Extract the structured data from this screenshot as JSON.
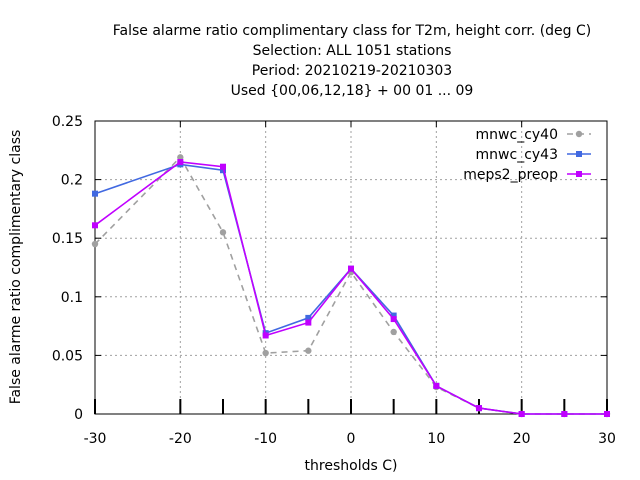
{
  "chart_data": {
    "type": "line",
    "title_lines": [
      "False alarme ratio complimentary class  for T2m, height corr. (deg C)",
      "Selection: ALL    1051 stations",
      "Period: 20210219-20210303",
      "Used {00,06,12,18} + 00 01 ... 09"
    ],
    "xlabel": "thresholds C)",
    "ylabel": "False alarme ratio complimentary class",
    "xlim": [
      -30,
      30
    ],
    "ylim": [
      0,
      0.25
    ],
    "xticks": [
      -30,
      -20,
      -10,
      0,
      10,
      20,
      30
    ],
    "xtick_labels": [
      "-30",
      "-20",
      "-10",
      "0",
      "10",
      "20",
      "30"
    ],
    "yticks": [
      0,
      0.05,
      0.1,
      0.15,
      0.2,
      0.25
    ],
    "ytick_labels": [
      "0",
      "0.05",
      "0.1",
      "0.15",
      "0.2",
      "0.25"
    ],
    "grid": true,
    "legend_position": "top-right",
    "x": [
      -30,
      -20,
      -15,
      -10,
      -5,
      0,
      5,
      10,
      15,
      20,
      25,
      30
    ],
    "series": [
      {
        "name": "mnwc_cy40",
        "color": "#a0a0a0",
        "dash": "dashed",
        "marker": "circle",
        "values": [
          0.145,
          0.219,
          0.155,
          0.052,
          0.054,
          0.121,
          0.07,
          0.023,
          0.005,
          0.0,
          0.0,
          0.0
        ]
      },
      {
        "name": "mnwc_cy43",
        "color": "#4169e1",
        "dash": "solid",
        "marker": "square",
        "values": [
          0.188,
          0.213,
          0.208,
          0.069,
          0.082,
          0.124,
          0.084,
          0.024,
          0.005,
          0.0,
          0.0,
          0.0
        ]
      },
      {
        "name": "meps2_preop",
        "color": "#c000ff",
        "dash": "solid",
        "marker": "square",
        "values": [
          0.161,
          0.215,
          0.211,
          0.067,
          0.078,
          0.124,
          0.081,
          0.024,
          0.005,
          0.0,
          0.0,
          0.0
        ]
      }
    ]
  }
}
